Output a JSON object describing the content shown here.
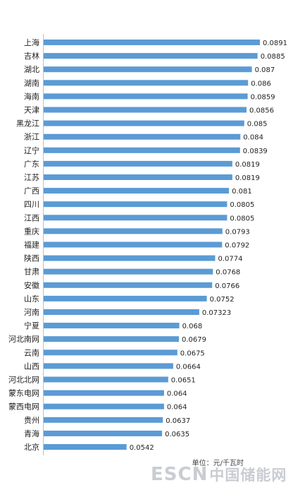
{
  "chart_data": {
    "type": "bar",
    "orientation": "horizontal",
    "categories": [
      "上海",
      "吉林",
      "湖北",
      "湖南",
      "海南",
      "天津",
      "黑龙江",
      "浙江",
      "辽宁",
      "广东",
      "江苏",
      "广西",
      "四川",
      "江西",
      "重庆",
      "福建",
      "陕西",
      "甘肃",
      "安徽",
      "山东",
      "河南",
      "宁夏",
      "河北南网",
      "云南",
      "山西",
      "河北北网",
      "蒙东电网",
      "蒙西电网",
      "贵州",
      "青海",
      "北京"
    ],
    "values": [
      0.0891,
      0.0885,
      0.087,
      0.086,
      0.0859,
      0.0856,
      0.085,
      0.084,
      0.0839,
      0.0819,
      0.0819,
      0.081,
      0.0805,
      0.0805,
      0.0793,
      0.0792,
      0.0774,
      0.0768,
      0.0766,
      0.0752,
      0.07323,
      0.068,
      0.0679,
      0.0675,
      0.0664,
      0.0651,
      0.064,
      0.064,
      0.0637,
      0.0635,
      0.0542
    ],
    "value_labels": [
      "0.0891",
      "0.0885",
      "0.087",
      "0.086",
      "0.0859",
      "0.0856",
      "0.085",
      "0.084",
      "0.0839",
      "0.0819",
      "0.0819",
      "0.081",
      "0.0805",
      "0.0805",
      "0.0793",
      "0.0792",
      "0.0774",
      "0.0768",
      "0.0766",
      "0.0752",
      "0.07323",
      "0.068",
      "0.0679",
      "0.0675",
      "0.0664",
      "0.0651",
      "0.064",
      "0.064",
      "0.0637",
      "0.0635",
      "0.0542"
    ],
    "bar_color": "#5b9bd5",
    "axis_color": "#bfbfbf",
    "xlim": [
      0.0325,
      0.0891
    ],
    "grid": false,
    "legend": "none"
  },
  "unit_label": "单位：元/千瓦时",
  "watermark": {
    "en": "ESCN",
    "cn": "中国储能网"
  }
}
